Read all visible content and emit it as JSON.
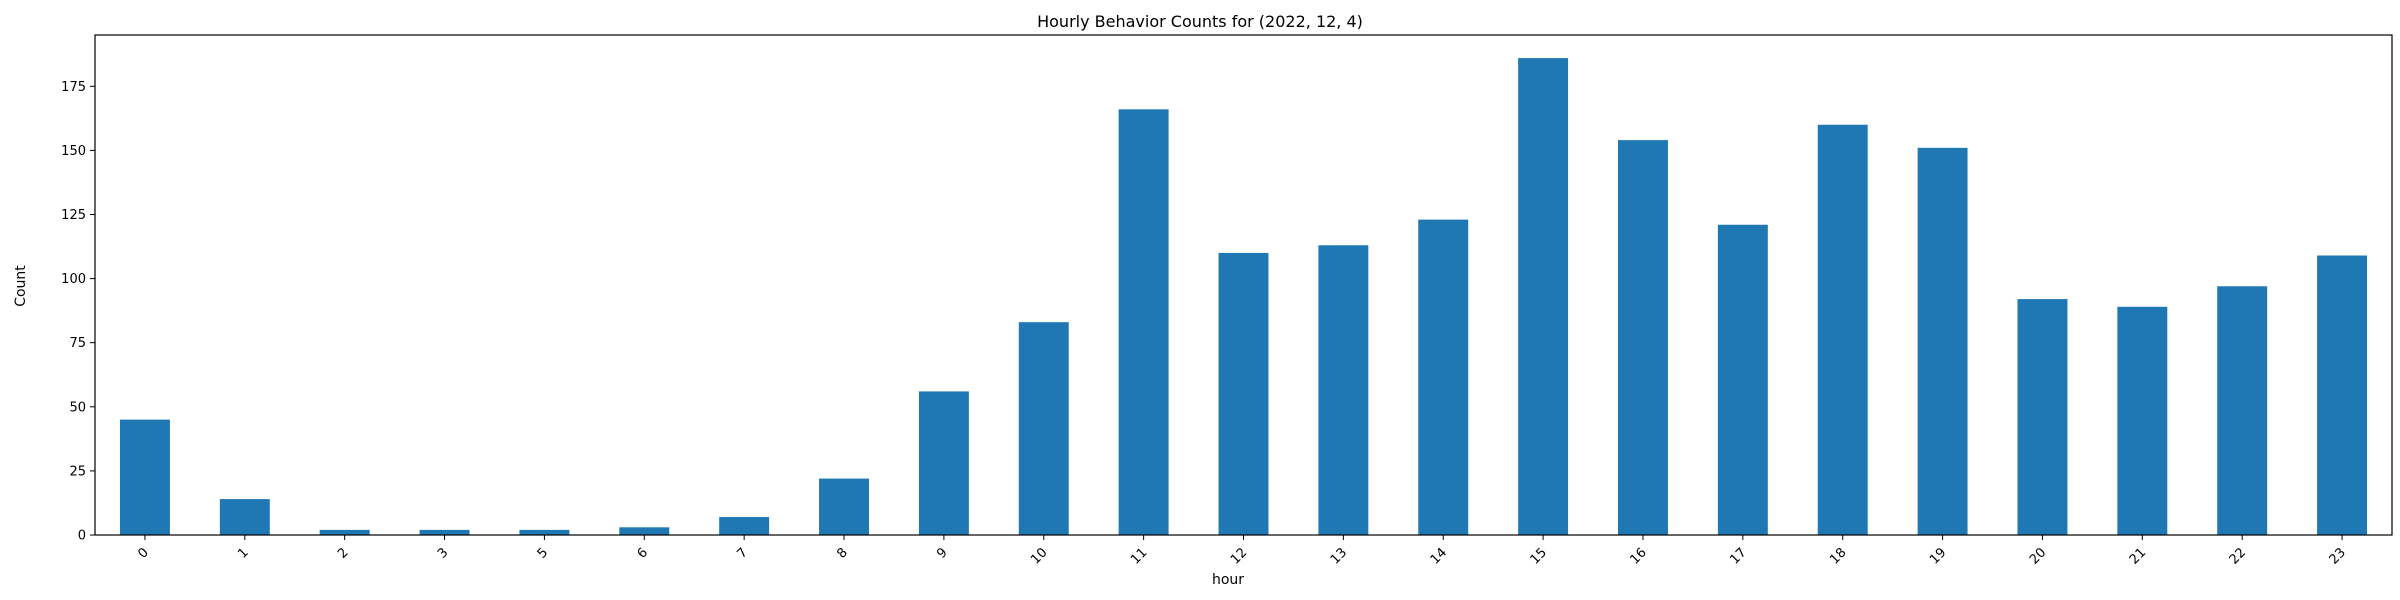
{
  "chart_data": {
    "type": "bar",
    "title": "Hourly Behavior Counts for (2022, 12, 4)",
    "xlabel": "hour",
    "ylabel": "Count",
    "categories": [
      "0",
      "1",
      "2",
      "3",
      "5",
      "6",
      "7",
      "8",
      "9",
      "10",
      "11",
      "12",
      "13",
      "14",
      "15",
      "16",
      "17",
      "18",
      "19",
      "20",
      "21",
      "22",
      "23"
    ],
    "values": [
      45,
      14,
      2,
      2,
      2,
      3,
      7,
      22,
      56,
      83,
      166,
      110,
      113,
      123,
      186,
      154,
      121,
      160,
      151,
      92,
      89,
      97,
      109
    ],
    "ylim": [
      0,
      195
    ],
    "yticks": [
      0,
      25,
      50,
      75,
      100,
      125,
      150,
      175
    ],
    "color": "#1f77b4",
    "grid": false,
    "legend": false
  }
}
